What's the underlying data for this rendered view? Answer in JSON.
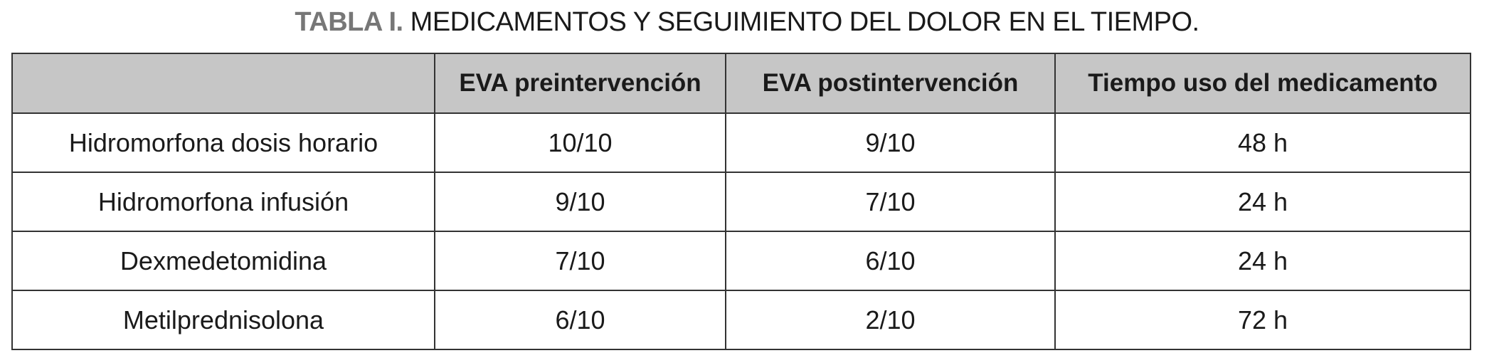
{
  "title": {
    "label": "TABLA I.",
    "text": "MEDICAMENTOS Y SEGUIMIENTO DEL DOLOR EN EL TIEMPO."
  },
  "table": {
    "headers": [
      "",
      "EVA preintervención",
      "EVA postintervención",
      "Tiempo uso del medicamento"
    ],
    "rows": [
      [
        "Hidromorfona dosis horario",
        "10/10",
        "9/10",
        "48 h"
      ],
      [
        "Hidromorfona infusión",
        "9/10",
        "7/10",
        "24 h"
      ],
      [
        "Dexmedetomidina",
        "7/10",
        "6/10",
        "24 h"
      ],
      [
        "Metilprednisolona",
        "6/10",
        "2/10",
        "72 h"
      ]
    ]
  },
  "colors": {
    "header_bg": "#c6c6c6",
    "label": "#777777",
    "border": "#333333"
  }
}
